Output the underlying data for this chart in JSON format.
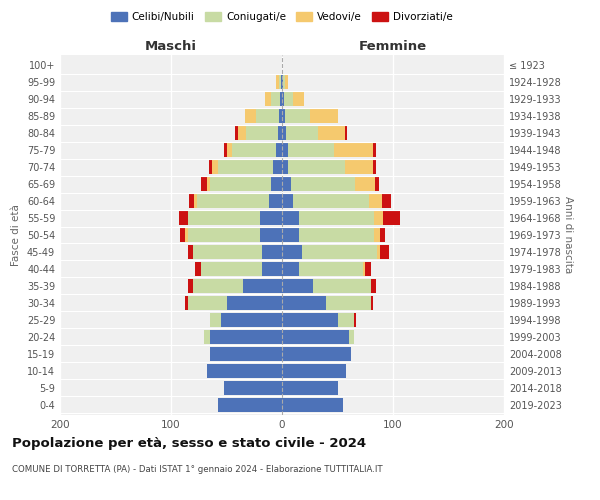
{
  "age_groups": [
    "0-4",
    "5-9",
    "10-14",
    "15-19",
    "20-24",
    "25-29",
    "30-34",
    "35-39",
    "40-44",
    "45-49",
    "50-54",
    "55-59",
    "60-64",
    "65-69",
    "70-74",
    "75-79",
    "80-84",
    "85-89",
    "90-94",
    "95-99",
    "100+"
  ],
  "birth_years": [
    "2019-2023",
    "2014-2018",
    "2009-2013",
    "2004-2008",
    "1999-2003",
    "1994-1998",
    "1989-1993",
    "1984-1988",
    "1979-1983",
    "1974-1978",
    "1969-1973",
    "1964-1968",
    "1959-1963",
    "1954-1958",
    "1949-1953",
    "1944-1948",
    "1939-1943",
    "1934-1938",
    "1929-1933",
    "1924-1928",
    "≤ 1923"
  ],
  "maschi": {
    "celibi": [
      58,
      52,
      68,
      65,
      65,
      55,
      50,
      35,
      18,
      18,
      20,
      20,
      12,
      10,
      8,
      5,
      4,
      3,
      2,
      1,
      0
    ],
    "coniugati": [
      0,
      0,
      0,
      0,
      5,
      10,
      35,
      45,
      55,
      62,
      65,
      65,
      65,
      55,
      50,
      40,
      28,
      20,
      8,
      2,
      0
    ],
    "vedovi": [
      0,
      0,
      0,
      0,
      0,
      0,
      0,
      0,
      0,
      0,
      2,
      0,
      2,
      3,
      5,
      5,
      8,
      10,
      5,
      2,
      0
    ],
    "divorziati": [
      0,
      0,
      0,
      0,
      0,
      0,
      2,
      5,
      5,
      5,
      5,
      8,
      5,
      5,
      3,
      2,
      2,
      0,
      0,
      0,
      0
    ]
  },
  "femmine": {
    "nubili": [
      55,
      50,
      58,
      62,
      60,
      50,
      40,
      28,
      15,
      18,
      15,
      15,
      10,
      8,
      5,
      5,
      4,
      3,
      2,
      1,
      0
    ],
    "coniugate": [
      0,
      0,
      0,
      0,
      5,
      15,
      40,
      52,
      58,
      68,
      68,
      68,
      68,
      58,
      52,
      42,
      28,
      22,
      8,
      2,
      0
    ],
    "vedove": [
      0,
      0,
      0,
      0,
      0,
      0,
      0,
      0,
      2,
      2,
      5,
      8,
      12,
      18,
      25,
      35,
      25,
      25,
      10,
      2,
      0
    ],
    "divorziate": [
      0,
      0,
      0,
      0,
      0,
      2,
      2,
      5,
      5,
      8,
      5,
      15,
      8,
      3,
      3,
      3,
      2,
      0,
      0,
      0,
      0
    ]
  },
  "colors": {
    "celibi_nubili": "#4d72b8",
    "coniugati": "#c8dba4",
    "vedovi": "#f5c96e",
    "divorziati": "#cc1111"
  },
  "xlim": 200,
  "title": "Popolazione per età, sesso e stato civile - 2024",
  "subtitle": "COMUNE DI TORRETTA (PA) - Dati ISTAT 1° gennaio 2024 - Elaborazione TUTTITALIA.IT",
  "ylabel_left": "Fasce di età",
  "ylabel_right": "Anni di nascita",
  "xlabel_maschi": "Maschi",
  "xlabel_femmine": "Femmine",
  "bg_color": "#f0f0f0"
}
